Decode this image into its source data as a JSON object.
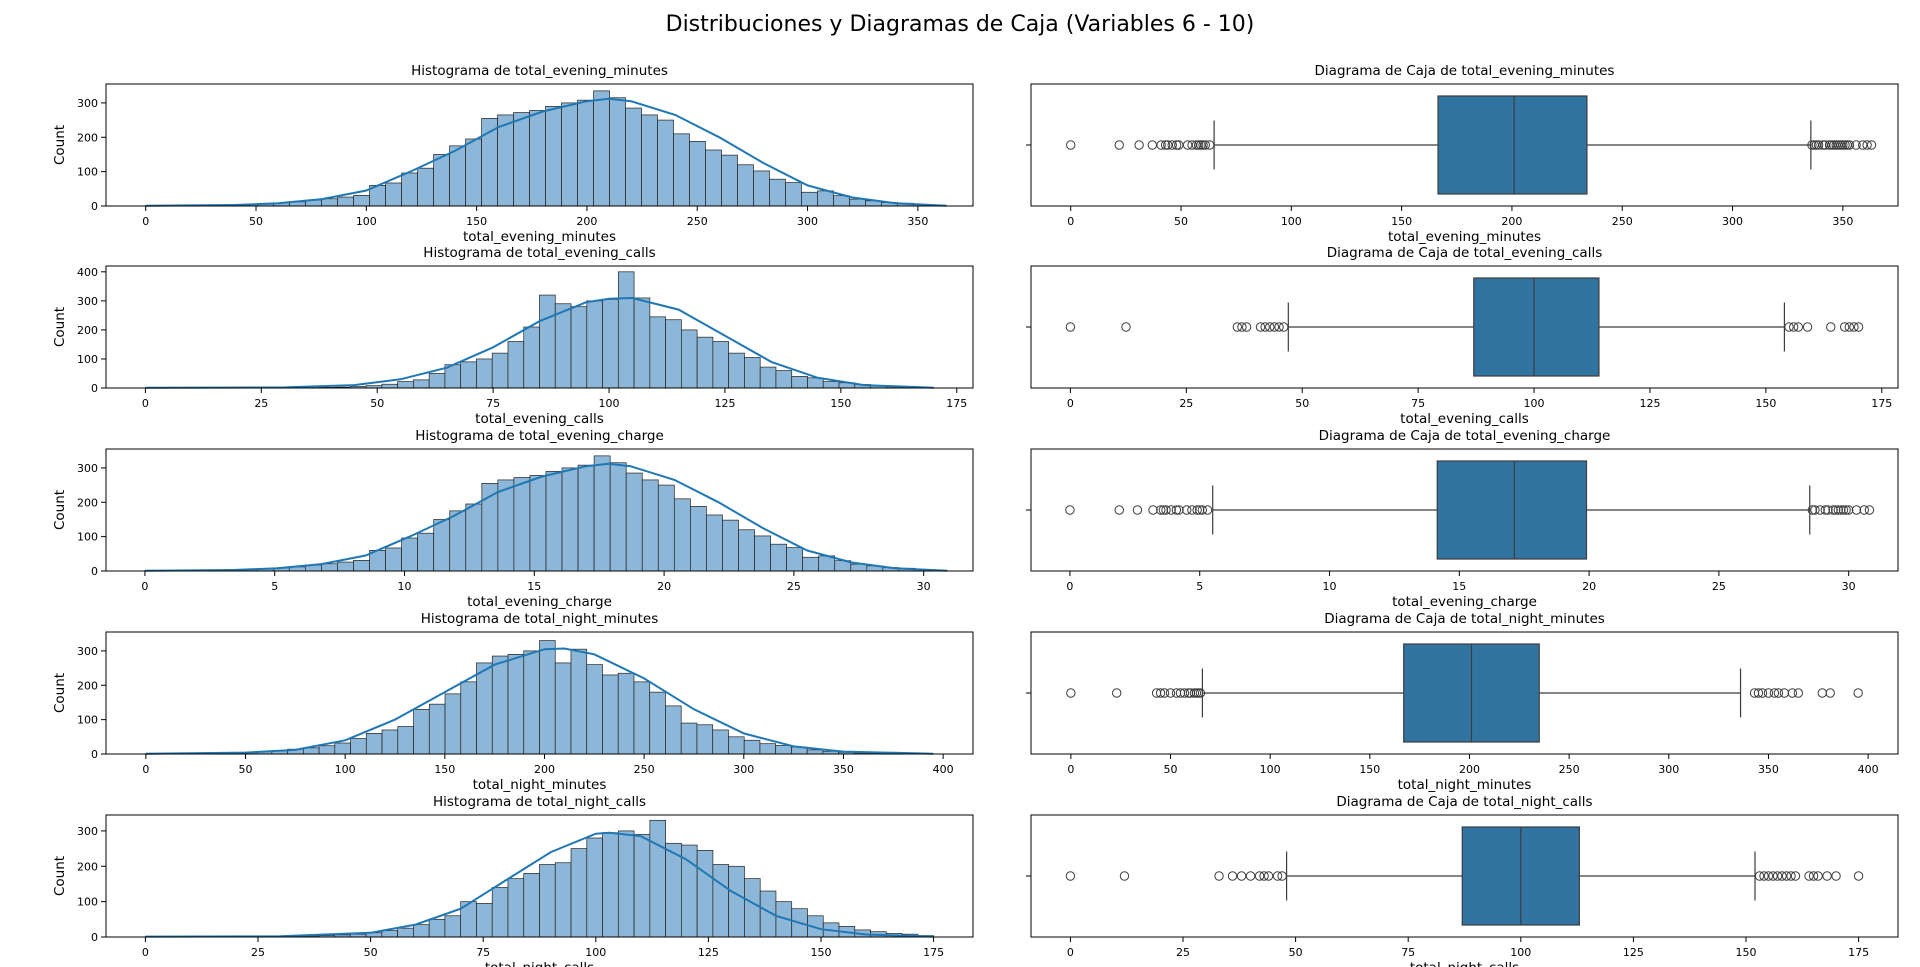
{
  "figure": {
    "title": "Distribuciones y Diagramas de Caja (Variables 6 - 10)",
    "colors": {
      "hist_fill": "#8db7d8",
      "kde_line": "#1f77b4",
      "box_fill": "#3274a1",
      "edge": "#222222"
    }
  },
  "chart_data": [
    {
      "type": "bar",
      "subtype": "histogram",
      "title": "Histograma de total_evening_minutes",
      "xlabel": "total_evening_minutes",
      "ylabel": "Count",
      "xlim": [
        -18,
        375
      ],
      "ylim": [
        0,
        355
      ],
      "xticks": [
        0,
        50,
        100,
        150,
        200,
        250,
        300,
        350
      ],
      "yticks": [
        0,
        100,
        200,
        300
      ],
      "bin_start": 0,
      "bin_width": 7.25,
      "values": [
        1,
        0,
        1,
        1,
        2,
        4,
        5,
        7,
        9,
        12,
        17,
        21,
        26,
        31,
        60,
        67,
        96,
        110,
        150,
        175,
        195,
        255,
        265,
        272,
        278,
        290,
        300,
        308,
        335,
        315,
        285,
        265,
        250,
        210,
        188,
        163,
        148,
        120,
        102,
        78,
        68,
        40,
        44,
        30,
        20,
        15,
        10,
        8,
        4,
        2
      ],
      "kde": [
        [
          0,
          1
        ],
        [
          40,
          3
        ],
        [
          60,
          8
        ],
        [
          80,
          20
        ],
        [
          100,
          45
        ],
        [
          120,
          100
        ],
        [
          140,
          160
        ],
        [
          160,
          230
        ],
        [
          180,
          275
        ],
        [
          200,
          305
        ],
        [
          210,
          312
        ],
        [
          220,
          305
        ],
        [
          240,
          265
        ],
        [
          260,
          200
        ],
        [
          280,
          125
        ],
        [
          300,
          60
        ],
        [
          320,
          25
        ],
        [
          340,
          8
        ],
        [
          363,
          1
        ]
      ],
      "grid": false
    },
    {
      "type": "box",
      "title": "Diagrama de Caja de total_evening_minutes",
      "xlabel": "total_evening_minutes",
      "xlim": [
        -18,
        375
      ],
      "xticks": [
        0,
        50,
        100,
        150,
        200,
        250,
        300,
        350
      ],
      "q1": 166.5,
      "median": 201,
      "q3": 234,
      "whisker_low": 65,
      "whisker_high": 335.5,
      "outliers": [
        0,
        22,
        31,
        37,
        41,
        43,
        44,
        46,
        48,
        49,
        53,
        55,
        57,
        58,
        59,
        60,
        61,
        63,
        336,
        337,
        338,
        339,
        341,
        342,
        344,
        345,
        346,
        347,
        348,
        349,
        350,
        351,
        352,
        353,
        356,
        359,
        361,
        363
      ],
      "grid": false
    },
    {
      "type": "bar",
      "subtype": "histogram",
      "title": "Histograma de total_evening_calls",
      "xlabel": "total_evening_calls",
      "ylabel": "Count",
      "xlim": [
        -8.5,
        178.5
      ],
      "ylim": [
        0,
        420
      ],
      "xticks": [
        0,
        25,
        50,
        75,
        100,
        125,
        150,
        175
      ],
      "yticks": [
        0,
        100,
        200,
        300,
        400
      ],
      "bin_start": 0,
      "bin_width": 3.4,
      "values": [
        1,
        0,
        0,
        0,
        0,
        0,
        0,
        0,
        0,
        0,
        1,
        2,
        3,
        5,
        8,
        13,
        22,
        28,
        50,
        80,
        90,
        100,
        120,
        160,
        210,
        320,
        290,
        280,
        300,
        305,
        400,
        310,
        245,
        235,
        200,
        175,
        160,
        120,
        105,
        72,
        60,
        40,
        35,
        22,
        18,
        12,
        8,
        4,
        3,
        2
      ],
      "kde": [
        [
          0,
          1
        ],
        [
          30,
          2
        ],
        [
          45,
          10
        ],
        [
          55,
          30
        ],
        [
          65,
          70
        ],
        [
          75,
          140
        ],
        [
          85,
          230
        ],
        [
          95,
          295
        ],
        [
          100,
          307
        ],
        [
          105,
          310
        ],
        [
          115,
          270
        ],
        [
          125,
          180
        ],
        [
          135,
          90
        ],
        [
          145,
          35
        ],
        [
          155,
          10
        ],
        [
          170,
          1
        ]
      ],
      "grid": false
    },
    {
      "type": "box",
      "title": "Diagrama de Caja de total_evening_calls",
      "xlabel": "total_evening_calls",
      "xlim": [
        -8.5,
        178.5
      ],
      "xticks": [
        0,
        25,
        50,
        75,
        100,
        125,
        150,
        175
      ],
      "q1": 87,
      "median": 100,
      "q3": 114,
      "whisker_low": 47,
      "whisker_high": 154,
      "outliers": [
        0,
        12,
        36,
        37,
        38,
        41,
        42,
        43,
        44,
        45,
        46,
        155,
        156,
        157,
        159,
        164,
        167,
        168,
        169,
        170
      ],
      "grid": false
    },
    {
      "type": "bar",
      "subtype": "histogram",
      "title": "Histograma de total_evening_charge",
      "xlabel": "total_evening_charge",
      "ylabel": "Count",
      "xlim": [
        -1.5,
        31.9
      ],
      "ylim": [
        0,
        355
      ],
      "xticks": [
        0,
        5,
        10,
        15,
        20,
        25,
        30
      ],
      "yticks": [
        0,
        100,
        200,
        300
      ],
      "bin_start": 0,
      "bin_width": 0.618,
      "values": [
        1,
        0,
        1,
        1,
        2,
        4,
        5,
        7,
        9,
        12,
        17,
        21,
        26,
        31,
        60,
        67,
        96,
        110,
        150,
        175,
        195,
        255,
        265,
        272,
        278,
        290,
        300,
        308,
        335,
        315,
        285,
        265,
        250,
        210,
        188,
        163,
        148,
        120,
        102,
        78,
        68,
        40,
        44,
        30,
        20,
        15,
        10,
        8,
        4,
        2
      ],
      "kde": [
        [
          0,
          1
        ],
        [
          3.4,
          3
        ],
        [
          5.1,
          8
        ],
        [
          6.8,
          20
        ],
        [
          8.5,
          45
        ],
        [
          10.2,
          100
        ],
        [
          11.9,
          160
        ],
        [
          13.6,
          230
        ],
        [
          15.3,
          275
        ],
        [
          17,
          305
        ],
        [
          17.85,
          312
        ],
        [
          18.7,
          305
        ],
        [
          20.4,
          265
        ],
        [
          22.1,
          200
        ],
        [
          23.8,
          125
        ],
        [
          25.5,
          60
        ],
        [
          27.2,
          25
        ],
        [
          28.9,
          8
        ],
        [
          30.9,
          1
        ]
      ],
      "grid": false
    },
    {
      "type": "box",
      "title": "Diagrama de Caja de total_evening_charge",
      "xlabel": "total_evening_charge",
      "xlim": [
        -1.5,
        31.9
      ],
      "xticks": [
        0,
        5,
        10,
        15,
        20,
        25,
        30
      ],
      "q1": 14.15,
      "median": 17.12,
      "q3": 19.9,
      "whisker_low": 5.5,
      "whisker_high": 28.5,
      "outliers": [
        0,
        1.9,
        2.6,
        3.2,
        3.5,
        3.6,
        3.7,
        3.9,
        4.1,
        4.2,
        4.5,
        4.7,
        4.9,
        5.0,
        5.1,
        5.3,
        28.6,
        28.7,
        28.9,
        29.1,
        29.2,
        29.4,
        29.5,
        29.6,
        29.7,
        29.8,
        29.9,
        30.0,
        30.3,
        30.6,
        30.8
      ],
      "grid": false
    },
    {
      "type": "bar",
      "subtype": "histogram",
      "title": "Histograma de total_night_minutes",
      "xlabel": "total_night_minutes",
      "ylabel": "Count",
      "xlim": [
        -20,
        415
      ],
      "ylim": [
        0,
        355
      ],
      "xticks": [
        0,
        50,
        100,
        150,
        200,
        250,
        300,
        350,
        400
      ],
      "yticks": [
        0,
        100,
        200,
        300
      ],
      "bin_start": 0,
      "bin_width": 7.9,
      "values": [
        1,
        0,
        1,
        1,
        2,
        3,
        5,
        7,
        10,
        14,
        18,
        24,
        32,
        45,
        60,
        70,
        80,
        130,
        145,
        175,
        210,
        265,
        285,
        290,
        300,
        330,
        265,
        305,
        260,
        230,
        235,
        210,
        180,
        140,
        90,
        85,
        70,
        50,
        40,
        30,
        25,
        20,
        12,
        8,
        5,
        3,
        2,
        1,
        1,
        1
      ],
      "kde": [
        [
          0,
          1
        ],
        [
          50,
          4
        ],
        [
          75,
          12
        ],
        [
          100,
          40
        ],
        [
          125,
          100
        ],
        [
          150,
          180
        ],
        [
          175,
          260
        ],
        [
          200,
          305
        ],
        [
          210,
          307
        ],
        [
          225,
          290
        ],
        [
          250,
          220
        ],
        [
          275,
          130
        ],
        [
          300,
          60
        ],
        [
          325,
          22
        ],
        [
          350,
          7
        ],
        [
          395,
          1
        ]
      ],
      "grid": false
    },
    {
      "type": "box",
      "title": "Diagrama de Caja de total_night_minutes",
      "xlabel": "total_night_minutes",
      "xlim": [
        -20,
        415
      ],
      "xticks": [
        0,
        50,
        100,
        150,
        200,
        250,
        300,
        350,
        400
      ],
      "q1": 167,
      "median": 201,
      "q3": 235,
      "whisker_low": 66,
      "whisker_high": 336,
      "outliers": [
        0,
        23,
        43,
        45,
        47,
        50,
        53,
        55,
        57,
        59,
        60,
        62,
        63,
        64,
        65,
        343,
        345,
        347,
        350,
        353,
        355,
        358,
        362,
        365,
        377,
        381,
        395
      ],
      "grid": false
    },
    {
      "type": "bar",
      "subtype": "histogram",
      "title": "Histograma de total_night_calls",
      "xlabel": "total_night_calls",
      "ylabel": "Count",
      "xlim": [
        -8.75,
        183.75
      ],
      "ylim": [
        0,
        345
      ],
      "xticks": [
        0,
        25,
        50,
        75,
        100,
        125,
        150,
        175
      ],
      "yticks": [
        0,
        100,
        200,
        300
      ],
      "bin_start": 0,
      "bin_width": 3.5,
      "values": [
        1,
        0,
        0,
        0,
        0,
        0,
        0,
        1,
        1,
        2,
        3,
        4,
        6,
        8,
        12,
        18,
        25,
        35,
        50,
        60,
        100,
        95,
        140,
        165,
        180,
        205,
        210,
        250,
        280,
        295,
        300,
        290,
        330,
        265,
        260,
        245,
        205,
        200,
        165,
        130,
        100,
        80,
        60,
        40,
        30,
        20,
        15,
        10,
        8,
        4
      ],
      "kde": [
        [
          0,
          1
        ],
        [
          30,
          2
        ],
        [
          50,
          12
        ],
        [
          60,
          35
        ],
        [
          70,
          80
        ],
        [
          80,
          160
        ],
        [
          90,
          240
        ],
        [
          100,
          292
        ],
        [
          103,
          295
        ],
        [
          110,
          285
        ],
        [
          120,
          220
        ],
        [
          130,
          130
        ],
        [
          140,
          60
        ],
        [
          150,
          22
        ],
        [
          160,
          7
        ],
        [
          175,
          1
        ]
      ],
      "grid": false
    },
    {
      "type": "box",
      "title": "Diagrama de Caja de total_night_calls",
      "xlabel": "total_night_calls",
      "xlim": [
        -8.75,
        183.75
      ],
      "xticks": [
        0,
        25,
        50,
        75,
        100,
        125,
        150,
        175
      ],
      "q1": 87,
      "median": 100,
      "q3": 113,
      "whisker_low": 48,
      "whisker_high": 152,
      "outliers": [
        0,
        12,
        33,
        36,
        38,
        40,
        42,
        43,
        44,
        46,
        47,
        153,
        154,
        155,
        156,
        157,
        158,
        159,
        160,
        161,
        164,
        165,
        166,
        168,
        170,
        175
      ],
      "grid": false
    }
  ]
}
